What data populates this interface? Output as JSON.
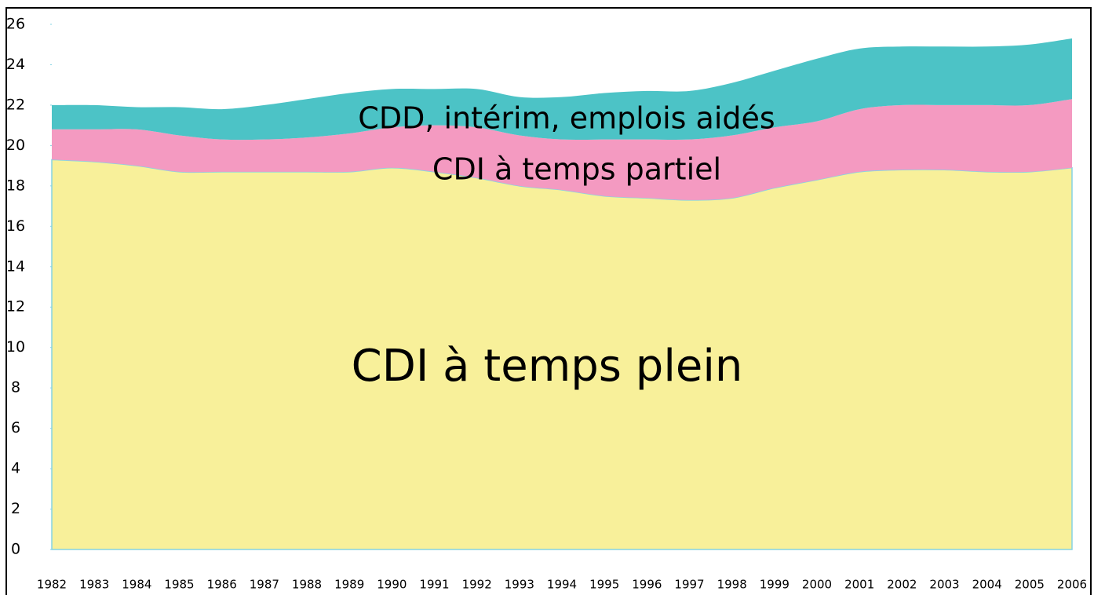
{
  "chart_data": {
    "type": "stacked_area",
    "x": [
      1982,
      1983,
      1984,
      1985,
      1986,
      1987,
      1988,
      1989,
      1990,
      1991,
      1992,
      1993,
      1994,
      1995,
      1996,
      1997,
      1998,
      1999,
      2000,
      2001,
      2002,
      2003,
      2004,
      2005,
      2006
    ],
    "series": [
      {
        "name": "CDI à temps plein",
        "color": "#f8f09a",
        "values": [
          19.3,
          19.2,
          19.0,
          18.7,
          18.7,
          18.7,
          18.7,
          18.7,
          18.9,
          18.7,
          18.4,
          18.0,
          17.8,
          17.5,
          17.4,
          17.3,
          17.4,
          17.9,
          18.3,
          18.7,
          18.8,
          18.8,
          18.7,
          18.7,
          18.9
        ]
      },
      {
        "name": "CDI à temps partiel",
        "color": "#f49ac1",
        "values": [
          1.5,
          1.6,
          1.8,
          1.8,
          1.6,
          1.6,
          1.7,
          1.9,
          2.0,
          2.3,
          2.5,
          2.5,
          2.5,
          2.8,
          2.9,
          3.0,
          3.1,
          3.0,
          2.9,
          3.1,
          3.2,
          3.2,
          3.3,
          3.3,
          3.4
        ]
      },
      {
        "name": "CDD, intérim, emplois aidés",
        "color": "#4cc3c6",
        "values": [
          1.2,
          1.2,
          1.1,
          1.4,
          1.5,
          1.7,
          1.9,
          2.0,
          1.9,
          1.8,
          1.9,
          1.9,
          2.1,
          2.3,
          2.4,
          2.4,
          2.6,
          2.8,
          3.1,
          3.0,
          2.9,
          2.9,
          2.9,
          3.0,
          3.0
        ]
      }
    ],
    "ylim": [
      0,
      26
    ],
    "yticks": [
      0,
      2,
      4,
      6,
      8,
      10,
      12,
      14,
      16,
      18,
      20,
      22,
      24,
      26
    ]
  }
}
